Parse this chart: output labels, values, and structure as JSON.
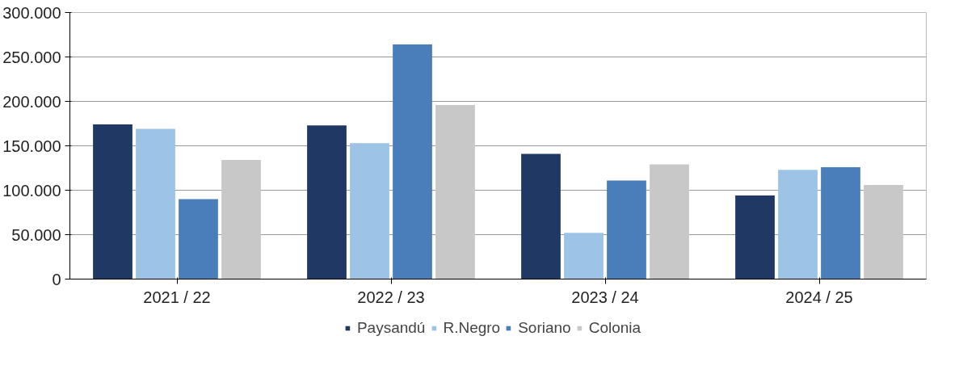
{
  "chart_data": {
    "type": "bar",
    "categories": [
      "2021 / 22",
      "2022 / 23",
      "2023 / 24",
      "2024 / 25"
    ],
    "series": [
      {
        "name": "Paysandú",
        "color": "#1f3864",
        "values": [
          174000,
          173000,
          141000,
          94000
        ]
      },
      {
        "name": "R.Negro",
        "color": "#9dc3e6",
        "values": [
          169000,
          153000,
          52000,
          123000
        ]
      },
      {
        "name": "Soriano",
        "color": "#4a7ebb",
        "values": [
          90000,
          264000,
          111000,
          126000
        ]
      },
      {
        "name": "Colonia",
        "color": "#c8c8c8",
        "values": [
          134000,
          196000,
          129000,
          106000
        ]
      }
    ],
    "ylim": [
      0,
      300000
    ],
    "yticks": [
      {
        "value": 0,
        "label": "0"
      },
      {
        "value": 50000,
        "label": "50.000"
      },
      {
        "value": 100000,
        "label": "100.000"
      },
      {
        "value": 150000,
        "label": "150.000"
      },
      {
        "value": 200000,
        "label": "200.000"
      },
      {
        "value": 250000,
        "label": "250.000"
      },
      {
        "value": 300000,
        "label": "300.000"
      }
    ],
    "grid": "y",
    "legend": "bottom"
  }
}
